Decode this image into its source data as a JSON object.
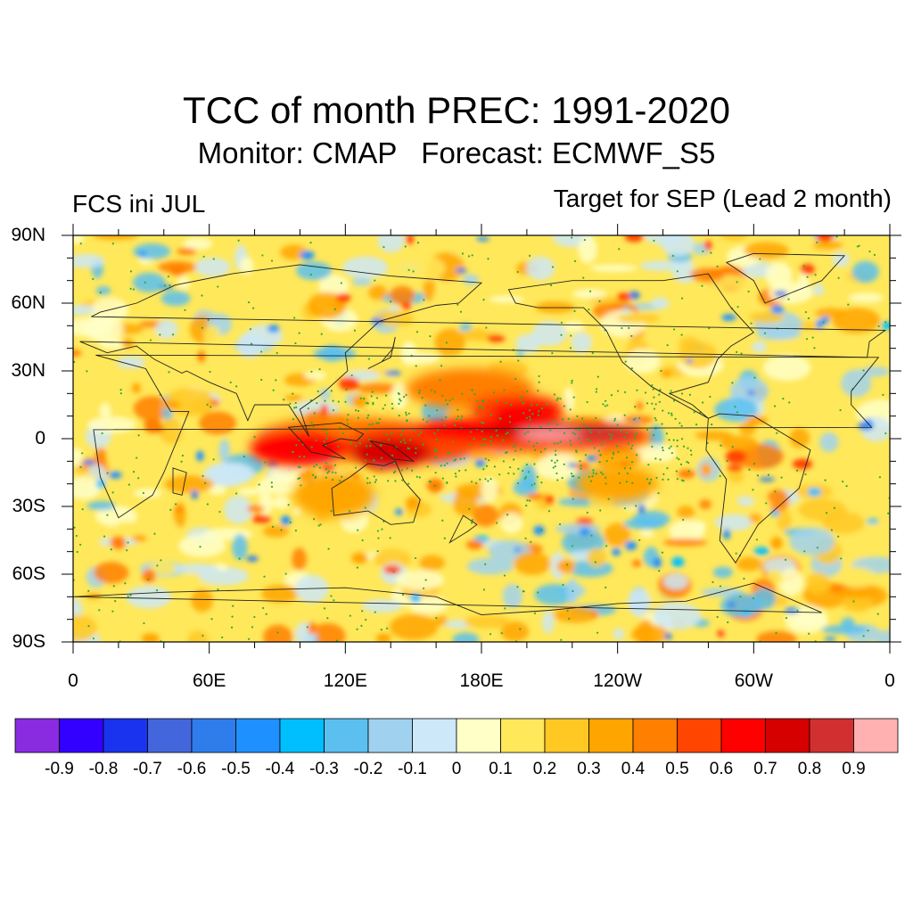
{
  "header": {
    "title": "TCC of month PREC: 1991-2020",
    "monitor": "Monitor: CMAP",
    "forecast": "Forecast: ECMWF_S5",
    "left_label": "FCS ini JUL",
    "right_label": "Target for SEP (Lead 2 month)"
  },
  "map": {
    "lat_labels": [
      "90N",
      "60N",
      "30N",
      "0",
      "30S",
      "60S",
      "90S"
    ],
    "lon_labels": [
      "0",
      "60E",
      "120E",
      "180E",
      "120W",
      "60W",
      "0"
    ],
    "field": "temporal correlation coefficient",
    "stipple_color": "#33aa33"
  },
  "colorbar": {
    "colors": [
      "#8a2be2",
      "#3300ff",
      "#1a33ee",
      "#4466dd",
      "#2f7ded",
      "#1e90ff",
      "#00bfff",
      "#5bbff0",
      "#a0d2f0",
      "#cde8f8",
      "#ffffc8",
      "#ffe85a",
      "#ffc823",
      "#ffa500",
      "#ff7f00",
      "#ff4500",
      "#ff0000",
      "#d60000",
      "#d03030",
      "#ffb0b0"
    ],
    "labels": [
      "-0.9",
      "-0.8",
      "-0.7",
      "-0.6",
      "-0.5",
      "-0.4",
      "-0.3",
      "-0.2",
      "-0.1",
      "0",
      "0.1",
      "0.2",
      "0.3",
      "0.4",
      "0.5",
      "0.6",
      "0.7",
      "0.8",
      "0.9"
    ]
  }
}
